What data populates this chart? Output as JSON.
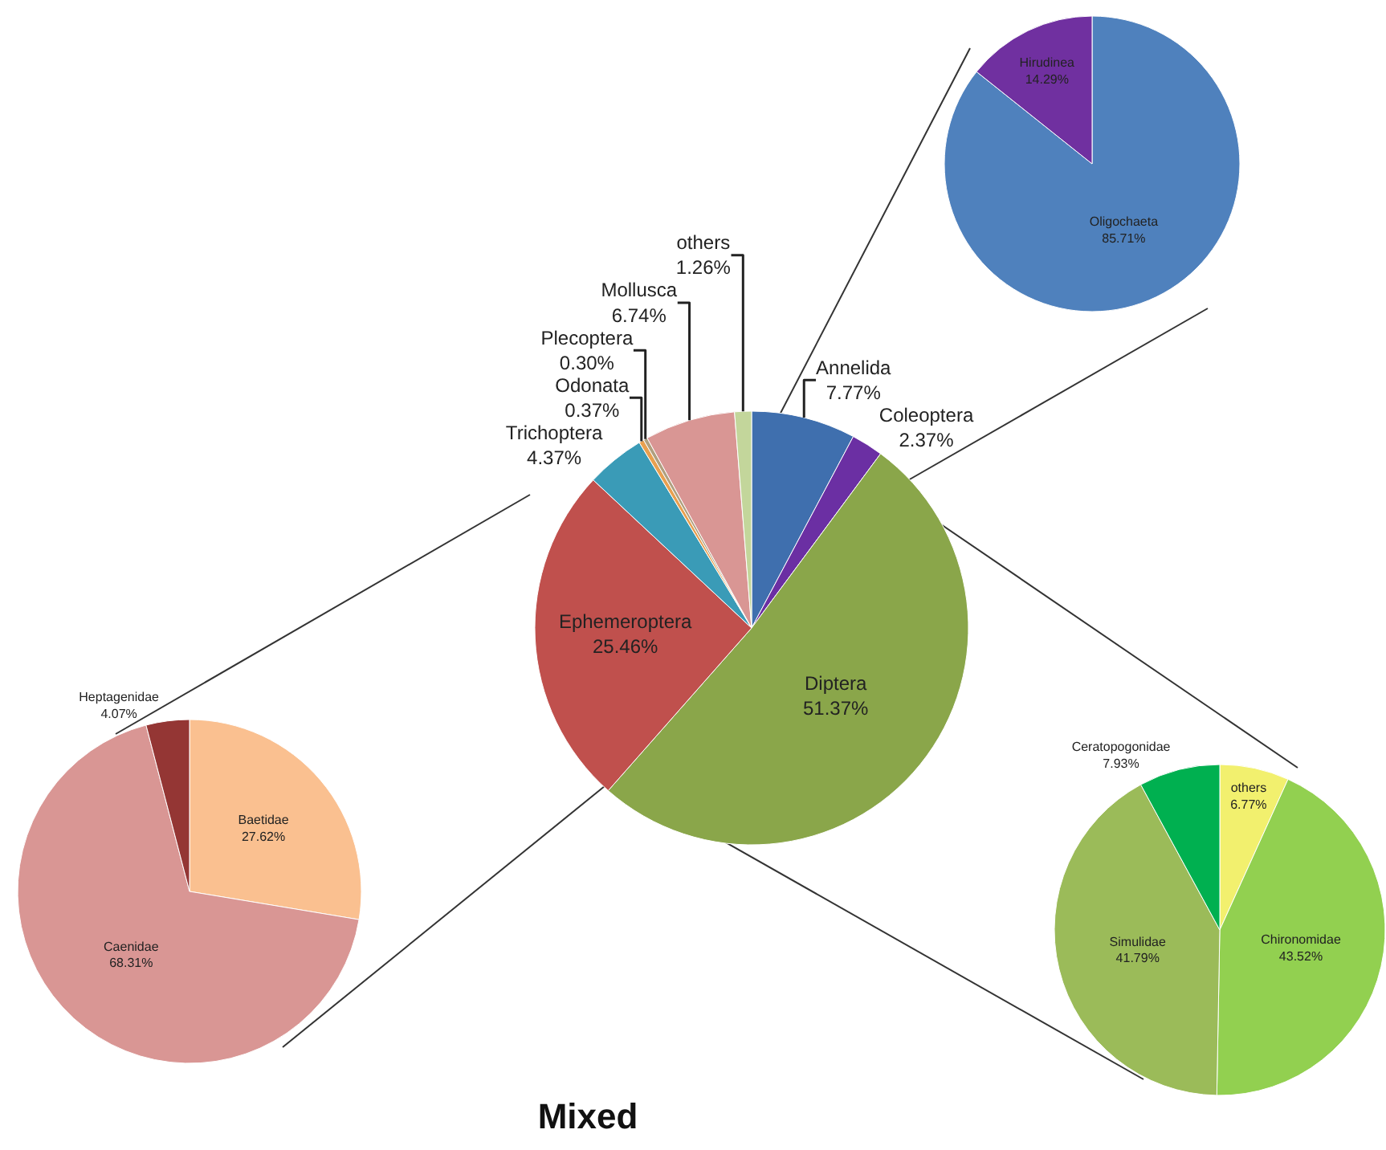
{
  "chart_data": [
    {
      "type": "pie",
      "title": "Mixed",
      "categories": [
        "Annelida",
        "Coleoptera",
        "Diptera",
        "Ephemeroptera",
        "Trichoptera",
        "Odonata",
        "Plecoptera",
        "Mollusca",
        "others"
      ],
      "values": [
        7.77,
        2.37,
        51.37,
        25.46,
        4.37,
        0.37,
        0.3,
        6.74,
        1.26
      ],
      "value_labels": [
        "7.77%",
        "2.37%",
        "51.37%",
        "25.46%",
        "4.37%",
        "0.37%",
        "0.30%",
        "6.74%",
        "1.26%"
      ],
      "colors": [
        "#3f6fae",
        "#6b2fa3",
        "#8aa64a",
        "#c0504d",
        "#3a9bb7",
        "#e8a050",
        "#b0a080",
        "#d99694",
        "#c3d69b"
      ]
    },
    {
      "type": "pie",
      "categories": [
        "Oligochaeta",
        "Hirudinea"
      ],
      "values": [
        85.71,
        14.29
      ],
      "value_labels": [
        "85.71%",
        "14.29%"
      ],
      "colors": [
        "#4f81bd",
        "#7030a0"
      ]
    },
    {
      "type": "pie",
      "categories": [
        "Baetidae",
        "Caenidae",
        "Heptagenidae"
      ],
      "values": [
        27.62,
        68.31,
        4.07
      ],
      "value_labels": [
        "27.62%",
        "68.31%",
        "4.07%"
      ],
      "colors": [
        "#fac090",
        "#d99694",
        "#943634"
      ]
    },
    {
      "type": "pie",
      "categories": [
        "others",
        "Chironomidae",
        "Simulidae",
        "Ceratopogonidae"
      ],
      "values": [
        6.77,
        43.52,
        41.79,
        7.93
      ],
      "value_labels": [
        "6.77%",
        "43.52%",
        "41.79%",
        "7.93%"
      ],
      "colors": [
        "#f2f06e",
        "#92d050",
        "#9bbb59",
        "#00b050"
      ]
    }
  ]
}
